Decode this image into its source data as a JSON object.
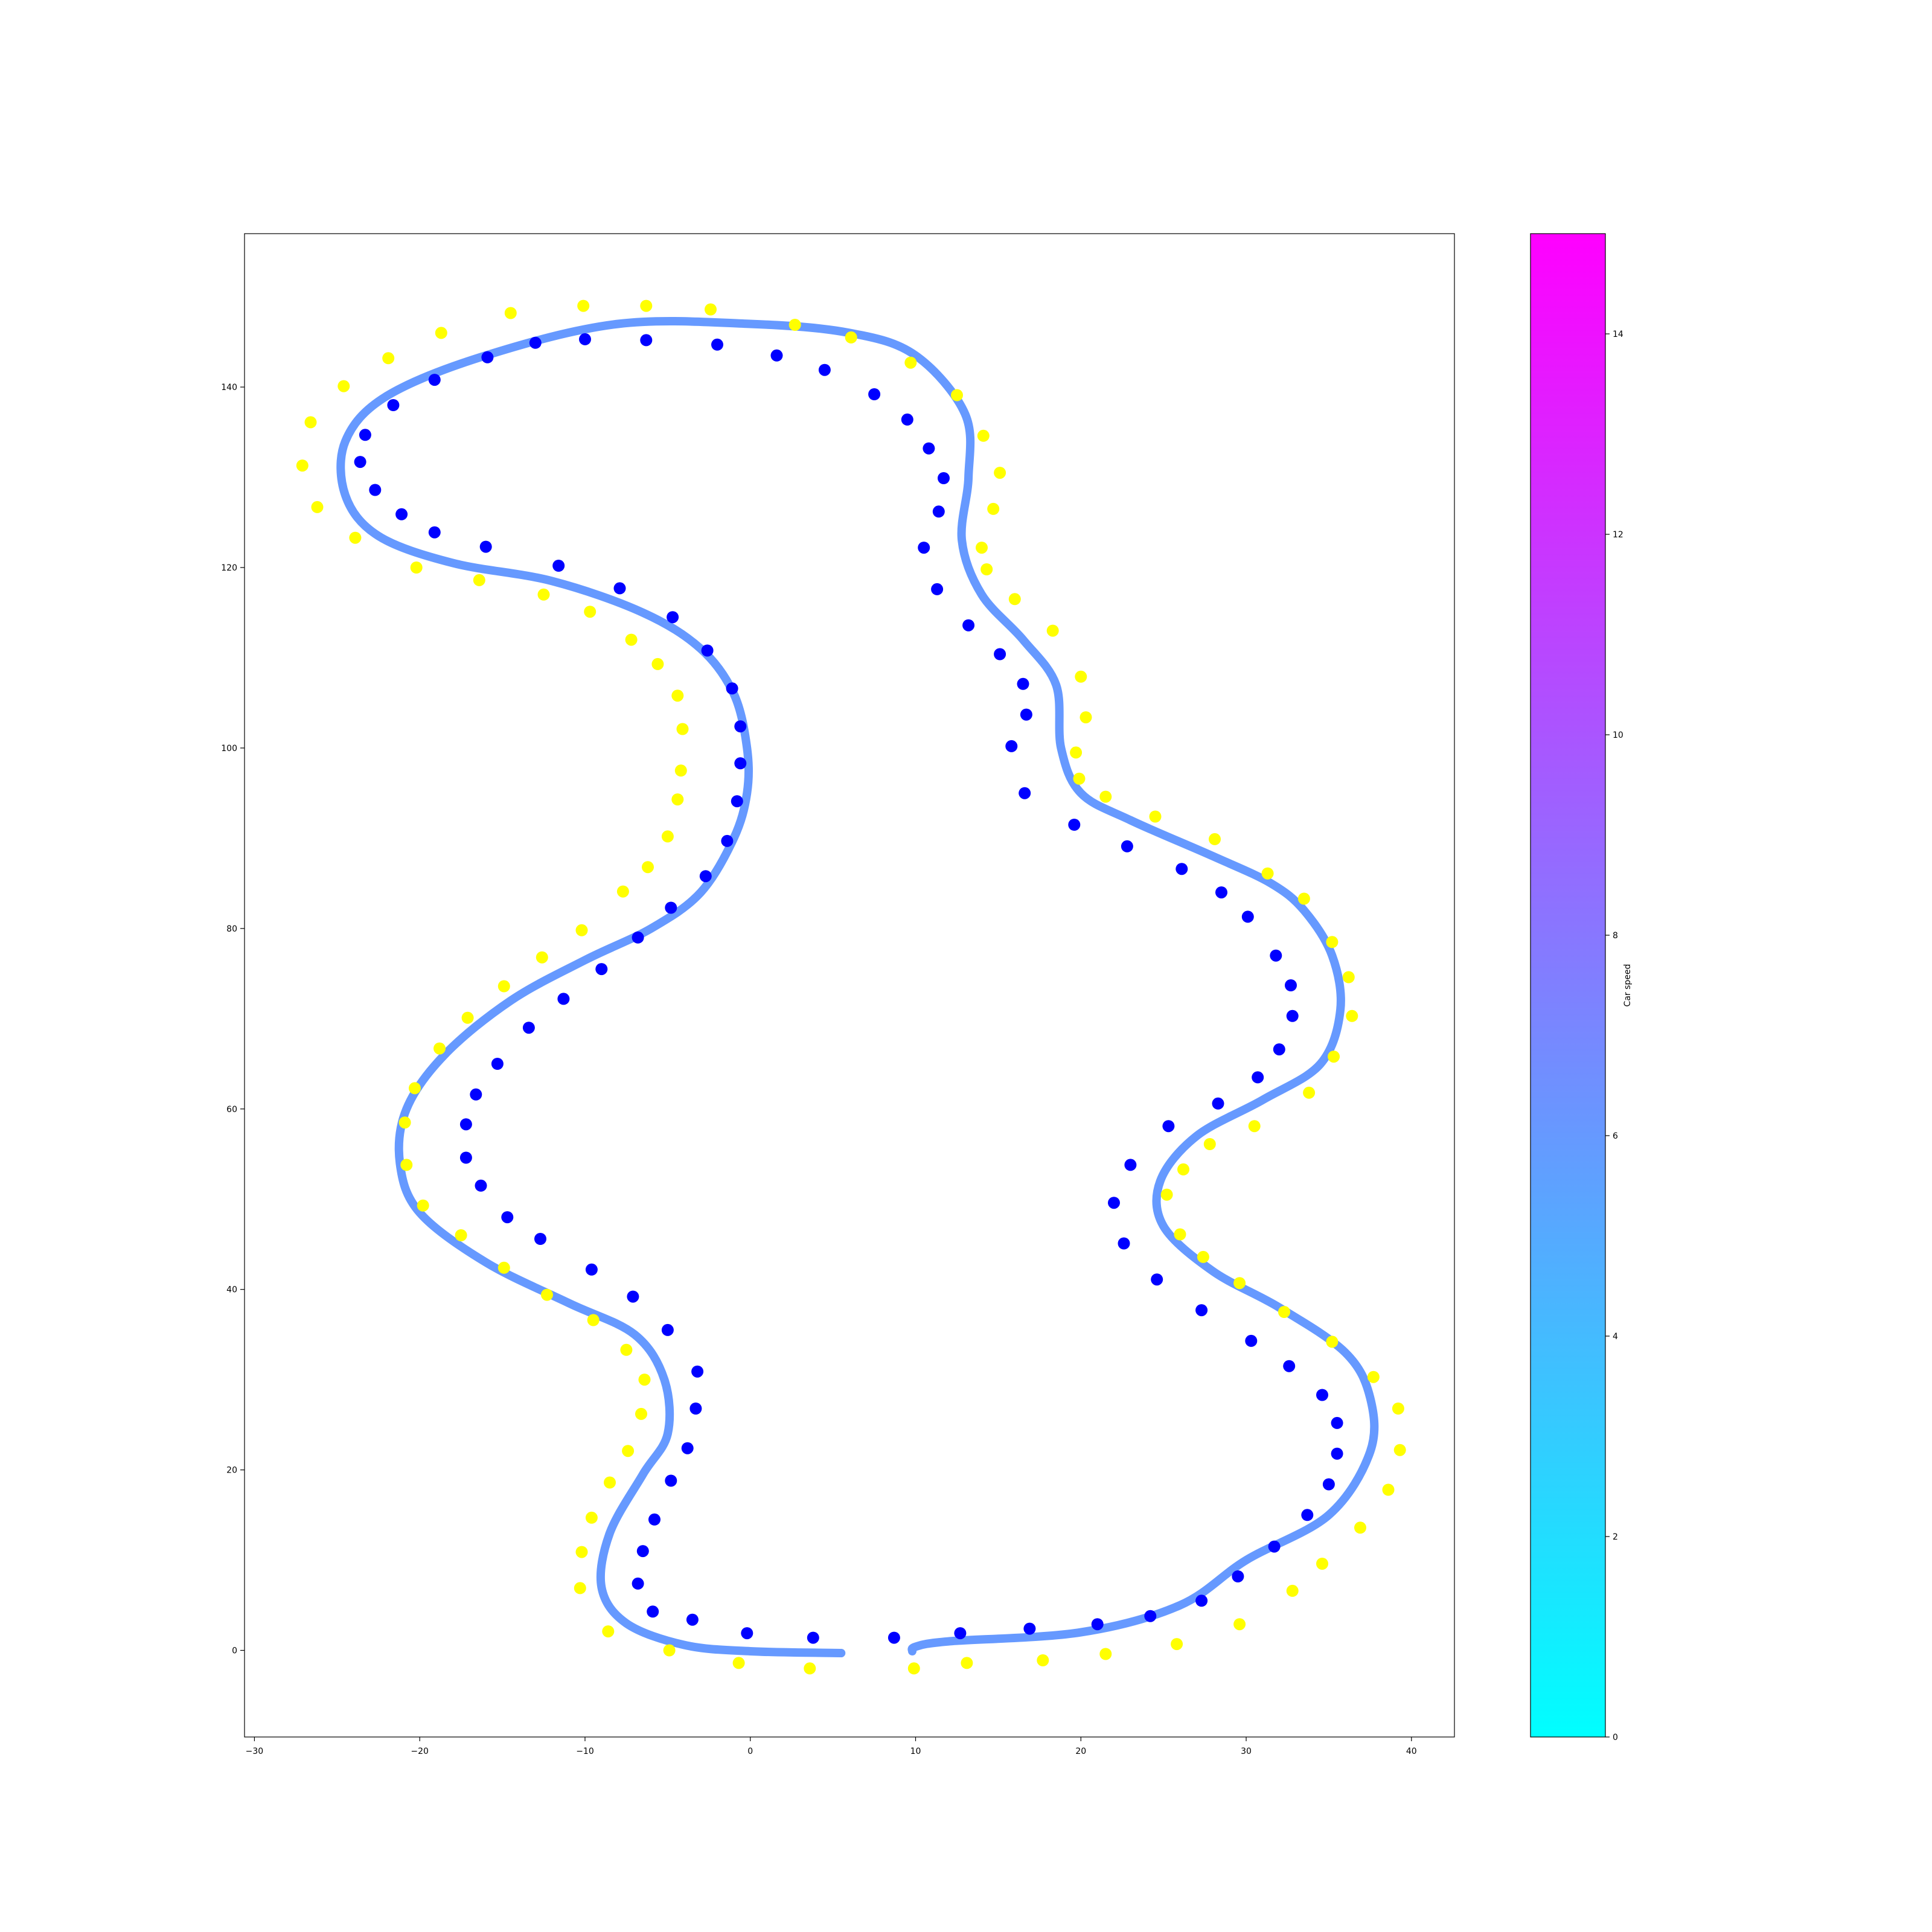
{
  "chart_data": [
    {
      "type": "scatter",
      "title": "",
      "xlabel": "",
      "ylabel": "",
      "xlim": [
        -30.6,
        42.6
      ],
      "ylim": [
        -9.6,
        157.0
      ],
      "xticks": [
        -30,
        -20,
        -10,
        0,
        10,
        20,
        30,
        40
      ],
      "yticks": [
        0,
        20,
        40,
        60,
        80,
        100,
        120,
        140
      ],
      "grid": false,
      "series": [
        {
          "role": "path",
          "mark": "line",
          "color": "#6699ff",
          "segments": [
            [
              [
                5.5,
                -0.3
              ],
              [
                0,
                -0.1
              ],
              [
                -4,
                0.6
              ],
              [
                -7.5,
                3
              ],
              [
                -9,
                7
              ],
              [
                -8.5,
                13
              ],
              [
                -6.5,
                19.5
              ],
              [
                -5,
                24
              ],
              [
                -5.2,
                30
              ],
              [
                -7,
                35
              ],
              [
                -11,
                38.5
              ],
              [
                -16,
                43
              ],
              [
                -20,
                48.5
              ],
              [
                -21.2,
                54
              ],
              [
                -20.8,
                60
              ],
              [
                -18.5,
                66
              ],
              [
                -14.5,
                72
              ],
              [
                -10,
                76.5
              ],
              [
                -6,
                80
              ],
              [
                -3,
                84
              ],
              [
                -1,
                90
              ],
              [
                -0.2,
                95
              ],
              [
                -0.2,
                100
              ],
              [
                -1,
                106
              ],
              [
                -3,
                111
              ],
              [
                -6.5,
                115
              ],
              [
                -12,
                118.5
              ],
              [
                -18,
                120.5
              ],
              [
                -22.5,
                123.5
              ],
              [
                -24.5,
                128
              ],
              [
                -24.5,
                134
              ],
              [
                -22,
                139
              ],
              [
                -16,
                143.5
              ],
              [
                -8,
                147
              ],
              [
                0,
                147
              ],
              [
                6,
                146
              ],
              [
                10,
                143.5
              ],
              [
                13,
                137
              ],
              [
                13.2,
                130
              ],
              [
                12.8,
                123
              ],
              [
                14,
                117
              ],
              [
                16.5,
                112
              ],
              [
                18.5,
                107
              ],
              [
                18.8,
                100
              ],
              [
                20,
                95
              ],
              [
                23,
                92
              ],
              [
                28,
                88
              ],
              [
                31.5,
                85
              ],
              [
                33.5,
                82
              ],
              [
                35.2,
                77
              ],
              [
                35.7,
                71
              ],
              [
                34.5,
                65
              ],
              [
                31,
                61
              ],
              [
                27,
                57
              ],
              [
                24.8,
                52
              ],
              [
                25,
                47
              ],
              [
                28,
                42
              ],
              [
                32,
                38
              ],
              [
                36,
                33
              ],
              [
                37.5,
                28
              ],
              [
                37.5,
                22
              ],
              [
                35,
                15
              ],
              [
                30,
                10
              ],
              [
                26,
                5
              ],
              [
                20,
                2
              ],
              [
                12,
                1
              ],
              [
                10,
                0.4
              ],
              [
                9.8,
                -0.1
              ]
            ]
          ]
        },
        {
          "role": "inner cones",
          "mark": "point",
          "color": "#0000ff",
          "points": [
            [
              3.8,
              1.4
            ],
            [
              -0.2,
              1.9
            ],
            [
              -3.5,
              3.4
            ],
            [
              -5.9,
              4.3
            ],
            [
              -6.8,
              7.4
            ],
            [
              -6.5,
              11
            ],
            [
              -5.8,
              14.5
            ],
            [
              -4.8,
              18.8
            ],
            [
              -3.8,
              22.4
            ],
            [
              -3.3,
              26.8
            ],
            [
              -3.2,
              30.9
            ],
            [
              -5,
              35.5
            ],
            [
              -7.1,
              39.2
            ],
            [
              -9.6,
              42.2
            ],
            [
              -12.7,
              45.6
            ],
            [
              -14.7,
              48
            ],
            [
              -16.3,
              51.5
            ],
            [
              -17.2,
              54.6
            ],
            [
              -17.2,
              58.3
            ],
            [
              -16.6,
              61.6
            ],
            [
              -15.3,
              65
            ],
            [
              -13.4,
              69
            ],
            [
              -11.3,
              72.2
            ],
            [
              -9,
              75.5
            ],
            [
              -6.8,
              79
            ],
            [
              -4.8,
              82.3
            ],
            [
              -2.7,
              85.8
            ],
            [
              -1.4,
              89.7
            ],
            [
              -0.8,
              94.1
            ],
            [
              -0.6,
              98.3
            ],
            [
              -0.6,
              102.4
            ],
            [
              -1.1,
              106.6
            ],
            [
              -2.6,
              110.8
            ],
            [
              -4.7,
              114.5
            ],
            [
              -7.9,
              117.7
            ],
            [
              -11.6,
              120.2
            ],
            [
              -16,
              122.3
            ],
            [
              -19.1,
              123.9
            ],
            [
              -21.1,
              125.9
            ],
            [
              -22.7,
              128.6
            ],
            [
              -23.6,
              131.7
            ],
            [
              -23.3,
              134.7
            ],
            [
              -21.6,
              138
            ],
            [
              -19.1,
              140.8
            ],
            [
              -15.9,
              143.3
            ],
            [
              -13,
              144.9
            ],
            [
              -10,
              145.3
            ],
            [
              -6.3,
              145.2
            ],
            [
              -2,
              144.7
            ],
            [
              1.6,
              143.5
            ],
            [
              4.5,
              141.9
            ],
            [
              7.5,
              139.2
            ],
            [
              9.5,
              136.4
            ],
            [
              10.8,
              133.2
            ],
            [
              11.7,
              129.9
            ],
            [
              11.4,
              126.2
            ],
            [
              10.5,
              122.2
            ],
            [
              11.3,
              117.6
            ],
            [
              13.2,
              113.6
            ],
            [
              15.1,
              110.4
            ],
            [
              16.5,
              107.1
            ],
            [
              16.7,
              103.7
            ],
            [
              15.8,
              100.2
            ],
            [
              16.6,
              95
            ],
            [
              19.6,
              91.5
            ],
            [
              22.8,
              89.1
            ],
            [
              26.1,
              86.6
            ],
            [
              28.5,
              84
            ],
            [
              30.1,
              81.3
            ],
            [
              31.8,
              77
            ],
            [
              32.7,
              73.7
            ],
            [
              32.8,
              70.3
            ],
            [
              32,
              66.6
            ],
            [
              30.7,
              63.5
            ],
            [
              28.3,
              60.6
            ],
            [
              25.3,
              58.1
            ],
            [
              23,
              53.8
            ],
            [
              22,
              49.6
            ],
            [
              22.6,
              45.1
            ],
            [
              24.6,
              41.1
            ],
            [
              27.3,
              37.7
            ],
            [
              30.3,
              34.3
            ],
            [
              32.6,
              31.5
            ],
            [
              34.6,
              28.3
            ],
            [
              35.5,
              25.2
            ],
            [
              35.5,
              21.8
            ],
            [
              35,
              18.4
            ],
            [
              33.7,
              15
            ],
            [
              31.7,
              11.5
            ],
            [
              29.5,
              8.2
            ],
            [
              27.3,
              5.5
            ],
            [
              24.2,
              3.8
            ],
            [
              21,
              2.9
            ],
            [
              16.9,
              2.4
            ],
            [
              12.7,
              1.9
            ],
            [
              8.7,
              1.4
            ]
          ]
        },
        {
          "role": "outer cones",
          "mark": "point",
          "color": "#ffff00",
          "points": [
            [
              3.6,
              -2
            ],
            [
              -0.7,
              -1.4
            ],
            [
              -4.9,
              0
            ],
            [
              -8.6,
              2.1
            ],
            [
              -10.3,
              6.9
            ],
            [
              -10.2,
              10.9
            ],
            [
              -9.6,
              14.7
            ],
            [
              -8.5,
              18.6
            ],
            [
              -7.4,
              22.1
            ],
            [
              -6.6,
              26.2
            ],
            [
              -6.4,
              30
            ],
            [
              -7.5,
              33.3
            ],
            [
              -9.5,
              36.6
            ],
            [
              -12.3,
              39.4
            ],
            [
              -14.9,
              42.4
            ],
            [
              -17.5,
              46
            ],
            [
              -19.8,
              49.3
            ],
            [
              -20.8,
              53.8
            ],
            [
              -20.9,
              58.5
            ],
            [
              -20.3,
              62.3
            ],
            [
              -18.8,
              66.7
            ],
            [
              -17.1,
              70.1
            ],
            [
              -14.9,
              73.6
            ],
            [
              -12.6,
              76.8
            ],
            [
              -10.2,
              79.8
            ],
            [
              -7.7,
              84.1
            ],
            [
              -6.2,
              86.8
            ],
            [
              -5,
              90.2
            ],
            [
              -4.4,
              94.3
            ],
            [
              -4.2,
              97.5
            ],
            [
              -4.1,
              102.1
            ],
            [
              -4.4,
              105.8
            ],
            [
              -5.6,
              109.3
            ],
            [
              -7.2,
              112
            ],
            [
              -9.7,
              115.1
            ],
            [
              -12.5,
              117
            ],
            [
              -16.4,
              118.6
            ],
            [
              -20.2,
              120
            ],
            [
              -23.9,
              123.3
            ],
            [
              -26.2,
              126.7
            ],
            [
              -27.1,
              131.3
            ],
            [
              -26.6,
              136.1
            ],
            [
              -24.6,
              140.1
            ],
            [
              -21.9,
              143.2
            ],
            [
              -18.7,
              146
            ],
            [
              -14.5,
              148.2
            ],
            [
              -10.1,
              149
            ],
            [
              -6.3,
              149
            ],
            [
              -2.4,
              148.6
            ],
            [
              2.7,
              146.9
            ],
            [
              6.1,
              145.5
            ],
            [
              9.7,
              142.7
            ],
            [
              12.5,
              139.1
            ],
            [
              14.1,
              134.6
            ],
            [
              15.1,
              130.5
            ],
            [
              14.7,
              126.5
            ],
            [
              14,
              122.2
            ],
            [
              14.3,
              119.8
            ],
            [
              16,
              116.5
            ],
            [
              18.3,
              113
            ],
            [
              20,
              107.9
            ],
            [
              20.3,
              103.4
            ],
            [
              19.7,
              99.5
            ],
            [
              19.9,
              96.6
            ],
            [
              21.5,
              94.6
            ],
            [
              24.5,
              92.4
            ],
            [
              28.1,
              89.9
            ],
            [
              31.3,
              86.1
            ],
            [
              33.5,
              83.3
            ],
            [
              35.2,
              78.5
            ],
            [
              36.2,
              74.6
            ],
            [
              36.4,
              70.3
            ],
            [
              35.3,
              65.8
            ],
            [
              33.8,
              61.8
            ],
            [
              30.5,
              58.1
            ],
            [
              27.8,
              56.1
            ],
            [
              26.2,
              53.3
            ],
            [
              25.2,
              50.5
            ],
            [
              26,
              46.1
            ],
            [
              27.4,
              43.6
            ],
            [
              29.6,
              40.7
            ],
            [
              32.3,
              37.5
            ],
            [
              35.2,
              34.2
            ],
            [
              37.7,
              30.3
            ],
            [
              39.2,
              26.8
            ],
            [
              39.3,
              22.2
            ],
            [
              38.6,
              17.8
            ],
            [
              36.9,
              13.6
            ],
            [
              34.6,
              9.6
            ],
            [
              32.8,
              6.6
            ],
            [
              29.6,
              2.9
            ],
            [
              25.8,
              0.7
            ],
            [
              21.5,
              -0.4
            ],
            [
              17.7,
              -1.1
            ],
            [
              13.1,
              -1.4
            ],
            [
              9.9,
              -2
            ]
          ]
        }
      ],
      "colorbar": {
        "label": "Car speed",
        "range": [
          0,
          15
        ],
        "ticks": [
          0,
          2,
          4,
          6,
          8,
          10,
          12,
          14
        ],
        "colormap": "cool",
        "colors": [
          "#00ffff",
          "#ff00ff"
        ]
      }
    }
  ]
}
